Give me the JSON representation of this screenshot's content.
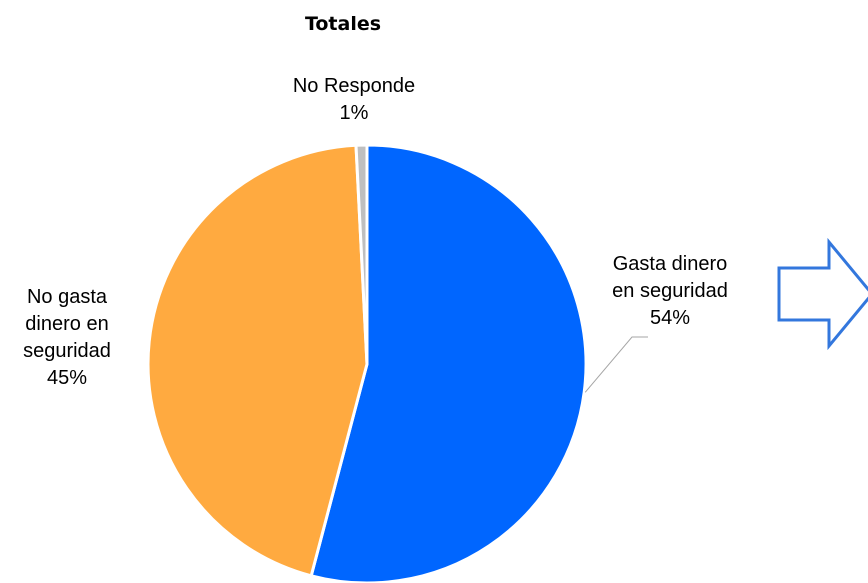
{
  "chart_data": {
    "type": "pie",
    "title": "Totales",
    "start_angle_deg": 0,
    "direction": "clockwise",
    "slices": [
      {
        "label_lines": [
          "Gasta dinero",
          "en seguridad"
        ],
        "pct_label": "54%",
        "value": 54.1,
        "color": "#0066FF"
      },
      {
        "label_lines": [
          "No gasta",
          "dinero en",
          "seguridad"
        ],
        "pct_label": "45%",
        "value": 45.1,
        "color": "#FFAA40"
      },
      {
        "label_lines": [
          "No Responde"
        ],
        "pct_label": "1%",
        "value": 0.8,
        "color": "#BFBFBF"
      }
    ],
    "slice_border_color": "#FFFFFF",
    "leader_line_color": "#A6A6A6",
    "callout_arrow_color": "#3377DD"
  }
}
